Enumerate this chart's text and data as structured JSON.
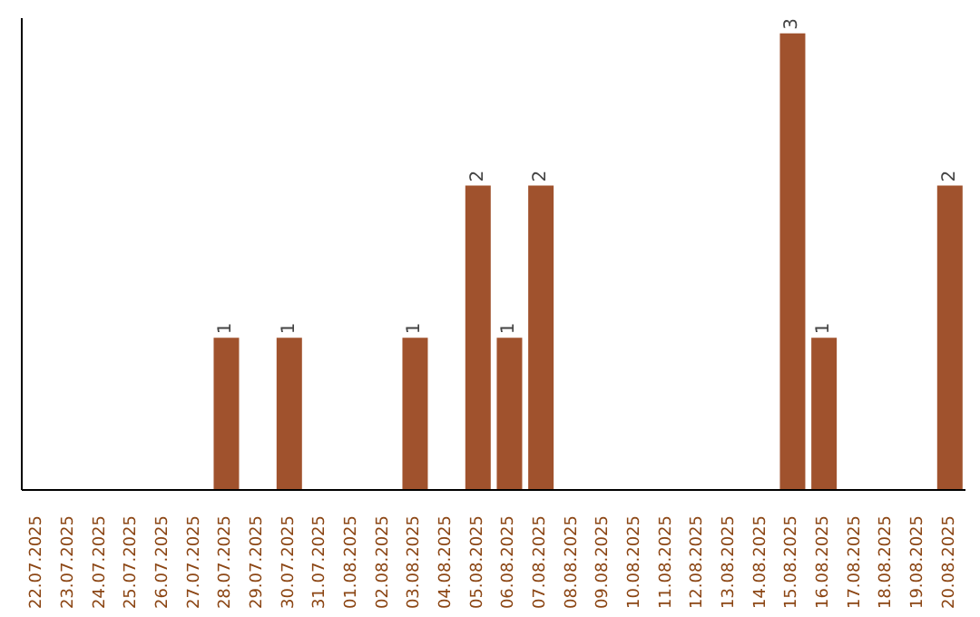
{
  "chart_data": {
    "type": "bar",
    "categories": [
      "22.07.2025",
      "23.07.2025",
      "24.07.2025",
      "25.07.2025",
      "26.07.2025",
      "27.07.2025",
      "28.07.2025",
      "29.07.2025",
      "30.07.2025",
      "31.07.2025",
      "01.08.2025",
      "02.08.2025",
      "03.08.2025",
      "04.08.2025",
      "05.08.2025",
      "06.08.2025",
      "07.08.2025",
      "08.08.2025",
      "09.08.2025",
      "10.08.2025",
      "11.08.2025",
      "12.08.2025",
      "13.08.2025",
      "14.08.2025",
      "15.08.2025",
      "16.08.2025",
      "17.08.2025",
      "18.08.2025",
      "19.08.2025",
      "20.08.2025"
    ],
    "values": [
      0,
      0,
      0,
      0,
      0,
      0,
      1,
      0,
      1,
      0,
      0,
      0,
      1,
      0,
      2,
      1,
      2,
      0,
      0,
      0,
      0,
      0,
      0,
      0,
      3,
      1,
      0,
      0,
      0,
      2
    ],
    "color": "#a0522d",
    "ylim": [
      0,
      3.1
    ],
    "value_labels": [
      null,
      null,
      null,
      null,
      null,
      null,
      "1",
      null,
      "1",
      null,
      null,
      null,
      "1",
      null,
      "2",
      "1",
      "2",
      null,
      null,
      null,
      null,
      null,
      null,
      null,
      "3",
      "1",
      null,
      null,
      null,
      "2"
    ]
  }
}
